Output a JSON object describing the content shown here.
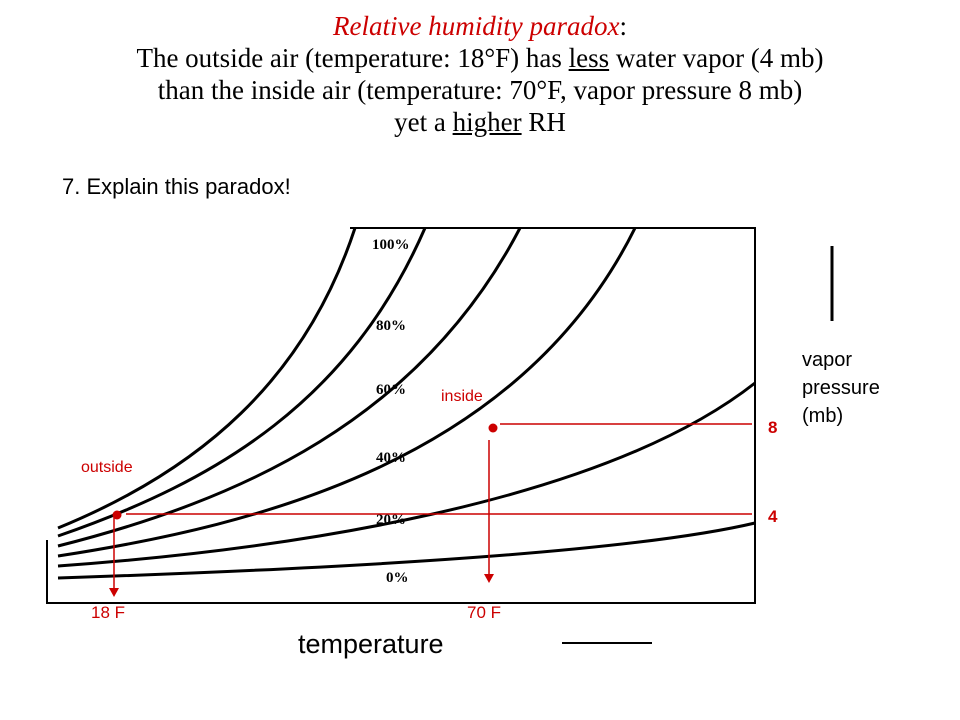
{
  "title": {
    "line1_emph": "Relative humidity paradox",
    "line1_colon": ":",
    "line2": "The outside air (temperature: 18°F) has less water vapor (4 mb)",
    "line3": "than the inside air (temperature: 70°F, vapor pressure 8 mb)",
    "line4_a": "yet a ",
    "line4_u": "higher",
    "line4_b": " RH"
  },
  "question": "7. Explain this paradox!",
  "curves": {
    "labels": [
      "100%",
      "80%",
      "60%",
      "40%",
      "20%",
      "0%"
    ]
  },
  "points": {
    "outside": {
      "label": "outside",
      "temperature": "18 F",
      "vapor_pressure": "4"
    },
    "inside": {
      "label": "inside",
      "temperature": "70 F",
      "vapor_pressure": "8"
    }
  },
  "axes": {
    "x_label": "temperature",
    "y_label_lines": [
      "vapor",
      "pressure",
      "(mb)"
    ]
  },
  "colors": {
    "accent": "#cc0000",
    "ink": "#000000"
  }
}
